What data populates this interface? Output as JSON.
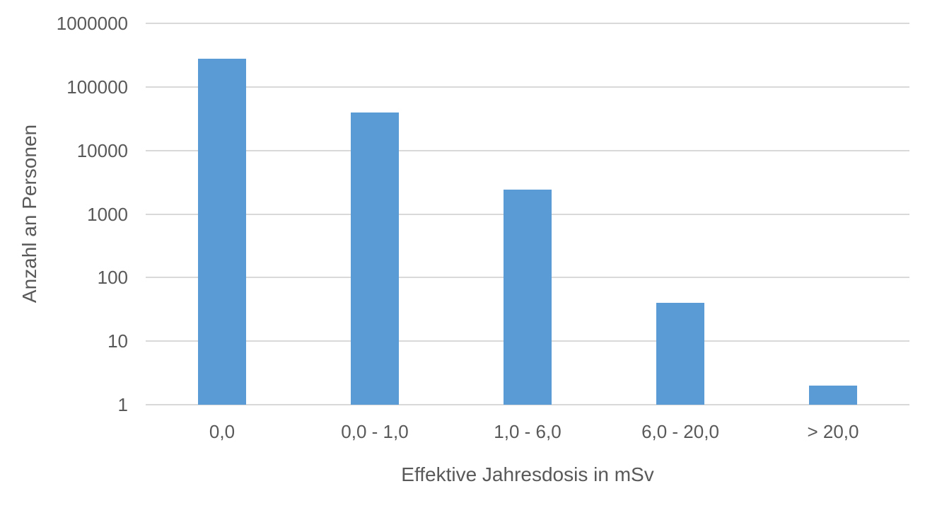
{
  "chart_data": {
    "type": "bar",
    "xlabel": "Effektive Jahresdosis in mSv",
    "ylabel": "Anzahl an Personen",
    "categories": [
      "0,0",
      "0,0 - 1,0",
      "1,0 - 6,0",
      "6,0 - 20,0",
      "> 20,0"
    ],
    "values": [
      280000,
      40000,
      2400,
      40,
      2
    ],
    "series_name": "Anzahl an Personen",
    "y_scale": "log10",
    "ylim": [
      1,
      1000000
    ],
    "yticks": [
      1,
      10,
      100,
      1000,
      10000,
      100000,
      1000000
    ],
    "ytick_labels": [
      "1",
      "10",
      "100",
      "1000",
      "10000",
      "100000",
      "1000000"
    ],
    "grid": "horizontal",
    "legend": "none",
    "bar_color": "#5B9BD5",
    "gridline_color": "#D9D9D9",
    "text_color": "#595959",
    "background": "#FFFFFF"
  }
}
